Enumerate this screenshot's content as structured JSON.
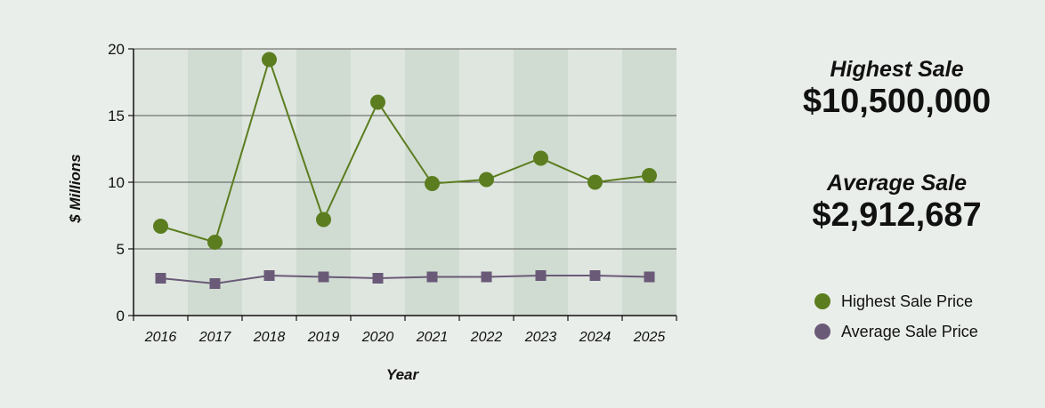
{
  "colors": {
    "highest": "#5b7d1f",
    "average": "#6a5a78",
    "band_light": "#dfe6df",
    "band_dark": "#d0dcd1",
    "grid": "#555555",
    "axis": "#111111"
  },
  "stats": {
    "highest_label": "Highest Sale",
    "highest_value": "$10,500,000",
    "average_label": "Average Sale",
    "average_value": "$2,912,687"
  },
  "legend": [
    {
      "label": "Highest Sale Price",
      "color": "#5b7d1f"
    },
    {
      "label": "Average Sale Price",
      "color": "#6a5a78"
    }
  ],
  "chart_data": {
    "type": "line",
    "title": "",
    "xlabel": "Year",
    "ylabel": "$ Millions",
    "ylim": [
      0,
      20
    ],
    "yticks": [
      "0",
      "5",
      "10",
      "15",
      "20"
    ],
    "categories": [
      "2016",
      "2017",
      "2018",
      "2019",
      "2020",
      "2021",
      "2022",
      "2023",
      "2024",
      "2025"
    ],
    "grid": true,
    "legend_position": "right",
    "series": [
      {
        "name": "Highest Sale Price",
        "marker": "circle",
        "values": [
          6.7,
          5.5,
          19.2,
          7.2,
          16.0,
          9.9,
          10.2,
          11.8,
          10.0,
          10.5
        ]
      },
      {
        "name": "Average Sale Price",
        "marker": "square",
        "values": [
          2.8,
          2.4,
          3.0,
          2.9,
          2.8,
          2.9,
          2.9,
          3.0,
          3.0,
          2.9
        ]
      }
    ]
  }
}
